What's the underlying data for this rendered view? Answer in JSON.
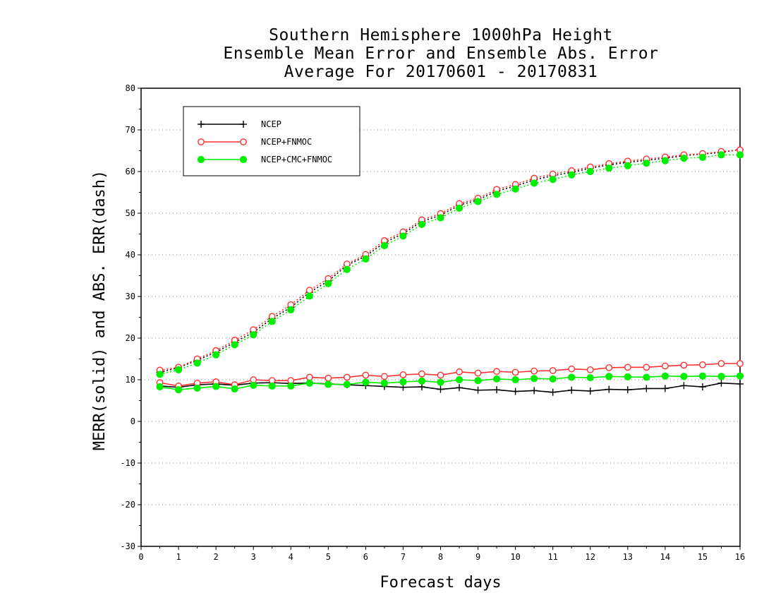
{
  "chart_data": {
    "type": "line",
    "title_lines": [
      "Southern Hemisphere 1000hPa Height",
      "Ensemble Mean Error and Ensemble Abs. Error",
      "Average For 20170601 - 20170831"
    ],
    "xlabel": "Forecast days",
    "ylabel": "MERR(solid) and ABS. ERR(dash)",
    "xlim": [
      0,
      16
    ],
    "ylim": [
      -30,
      80
    ],
    "xticks": [
      "0",
      "1",
      "2",
      "3",
      "4",
      "5",
      "6",
      "7",
      "8",
      "9",
      "10",
      "11",
      "12",
      "13",
      "14",
      "15",
      "16"
    ],
    "yticks": [
      "-30",
      "-20",
      "-10",
      "0",
      "10",
      "20",
      "30",
      "40",
      "50",
      "60",
      "70",
      "80"
    ],
    "grid": true,
    "legend_position": "top-left",
    "x": [
      0.5,
      1,
      1.5,
      2,
      2.5,
      3,
      3.5,
      4,
      4.5,
      5,
      5.5,
      6,
      6.5,
      7,
      7.5,
      8,
      8.5,
      9,
      9.5,
      10,
      10.5,
      11,
      11.5,
      12,
      12.5,
      13,
      13.5,
      14,
      14.5,
      15,
      15.5,
      16
    ],
    "series": [
      {
        "name": "NCEP",
        "color": "#000000",
        "marker": "plus",
        "merr": [
          8.5,
          8.2,
          8.8,
          9.0,
          8.7,
          9.2,
          9.3,
          9.1,
          9.2,
          9.0,
          8.8,
          8.6,
          8.4,
          8.2,
          8.3,
          7.7,
          8.1,
          7.5,
          7.6,
          7.2,
          7.4,
          7.0,
          7.5,
          7.3,
          7.7,
          7.6,
          7.9,
          7.9,
          8.6,
          8.3,
          9.2,
          9.0
        ],
        "abs": [
          11.8,
          12.9,
          14.7,
          16.6,
          19.0,
          21.4,
          24.7,
          27.4,
          31.0,
          33.7,
          37.5,
          39.7,
          42.9,
          45.1,
          48.0,
          49.5,
          51.9,
          53.2,
          55.3,
          56.5,
          58.0,
          59.0,
          59.8,
          60.8,
          61.6,
          62.2,
          62.7,
          63.2,
          63.8,
          64.2,
          64.6,
          65.3
        ]
      },
      {
        "name": "NCEP+FNMOC",
        "color": "#ff3030",
        "marker": "open-circle",
        "merr": [
          9.3,
          8.5,
          9.2,
          9.5,
          8.8,
          10.0,
          9.8,
          9.8,
          10.6,
          10.4,
          10.6,
          11.1,
          10.8,
          11.2,
          11.4,
          11.1,
          11.9,
          11.6,
          12.0,
          11.8,
          12.1,
          12.2,
          12.6,
          12.4,
          12.9,
          13.0,
          13.0,
          13.3,
          13.5,
          13.6,
          13.9,
          13.9
        ],
        "abs": [
          12.3,
          13.0,
          15.0,
          17.0,
          19.5,
          22.0,
          25.2,
          28.0,
          31.5,
          34.3,
          37.8,
          40.1,
          43.4,
          45.5,
          48.4,
          49.9,
          52.3,
          53.6,
          55.7,
          56.9,
          58.4,
          59.4,
          60.2,
          61.1,
          61.9,
          62.5,
          63.0,
          63.5,
          64.0,
          64.3,
          64.8,
          65.2
        ]
      },
      {
        "name": "NCEP+CMC+FNMOC",
        "color": "#00ee00",
        "marker": "filled-circle",
        "merr": [
          8.3,
          7.6,
          8.0,
          8.4,
          7.8,
          8.7,
          8.5,
          8.5,
          9.2,
          8.9,
          8.9,
          9.4,
          9.2,
          9.5,
          9.7,
          9.4,
          10.0,
          9.8,
          10.2,
          10.0,
          10.3,
          10.2,
          10.6,
          10.5,
          10.8,
          10.7,
          10.6,
          10.9,
          10.8,
          10.9,
          10.8,
          10.9
        ],
        "abs": [
          11.3,
          12.4,
          14.0,
          16.0,
          18.4,
          20.8,
          24.0,
          26.8,
          30.1,
          33.1,
          36.5,
          39.0,
          42.2,
          44.5,
          47.3,
          48.9,
          51.2,
          52.8,
          54.5,
          55.8,
          57.2,
          58.1,
          59.2,
          60.0,
          60.8,
          61.4,
          62.0,
          62.6,
          63.2,
          63.4,
          64.0,
          64.0
        ]
      }
    ]
  }
}
